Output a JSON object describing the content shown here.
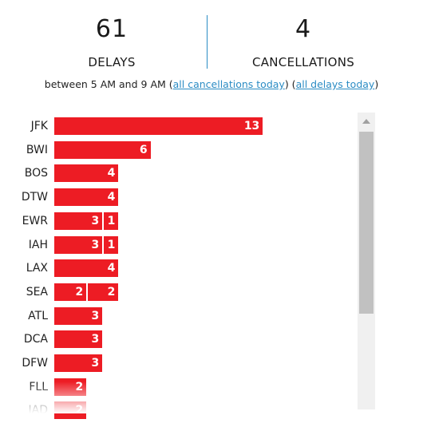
{
  "summary": {
    "delays_count": "61",
    "delays_label": "DELAYS",
    "cancellations_count": "4",
    "cancellations_label": "CANCELLATIONS"
  },
  "subtitle": {
    "prefix": "between 5 AM and 9 AM (",
    "link_cancellations": "all cancellations today",
    "middle": ") (",
    "link_delays": "all delays today",
    "suffix": ")"
  },
  "colors": {
    "bar": "#ed1c24",
    "link": "#2b8cc4",
    "divider": "#2b8cc4"
  },
  "chart_data": {
    "type": "bar",
    "orientation": "horizontal",
    "stacked": true,
    "categories": [
      "JFK",
      "BWI",
      "BOS",
      "DTW",
      "EWR",
      "IAH",
      "LAX",
      "SEA",
      "ATL",
      "DCA",
      "DFW",
      "FLL",
      "IAD"
    ],
    "segments": [
      [
        13
      ],
      [
        6
      ],
      [
        4
      ],
      [
        4
      ],
      [
        3,
        1
      ],
      [
        3,
        1
      ],
      [
        4
      ],
      [
        2,
        2
      ],
      [
        3
      ],
      [
        3
      ],
      [
        3
      ],
      [
        2
      ],
      [
        2
      ]
    ]
  }
}
